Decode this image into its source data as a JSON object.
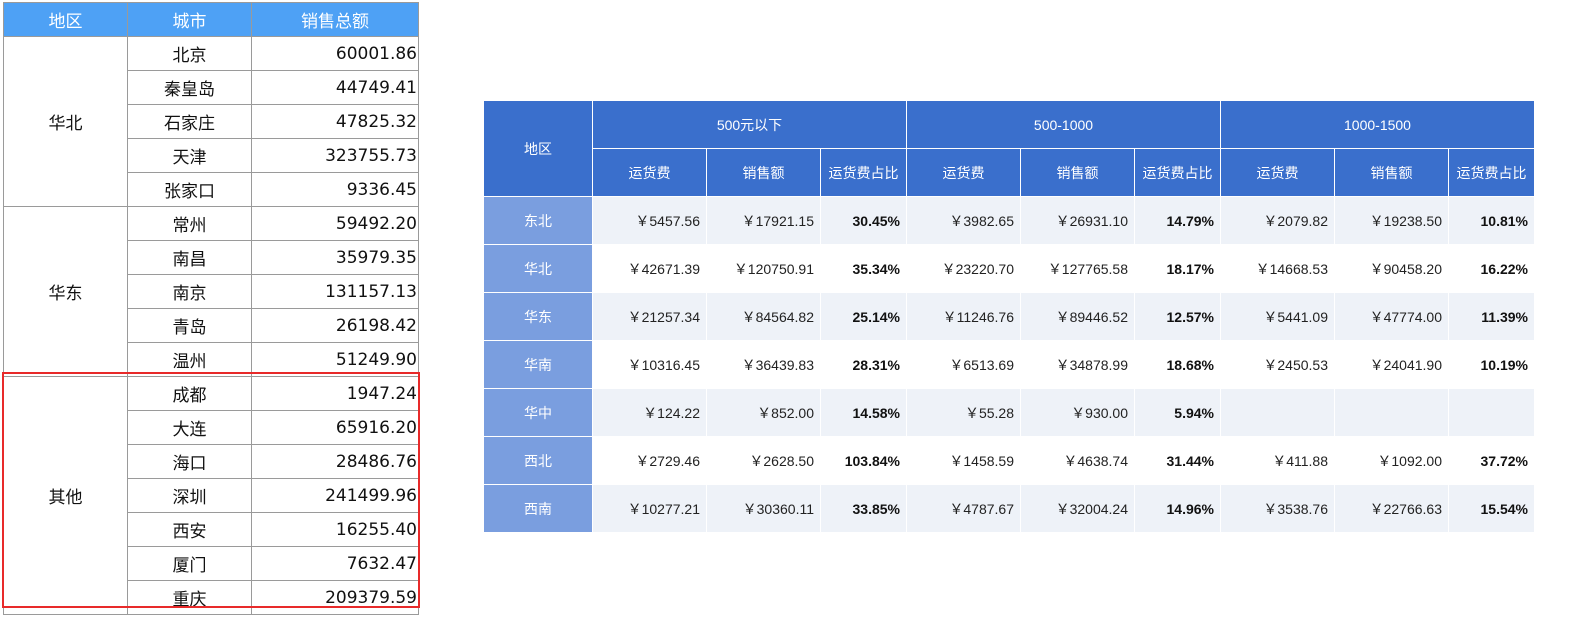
{
  "left_table": {
    "headers": [
      "地区",
      "城市",
      "销售总额"
    ],
    "groups": [
      {
        "region": "华北",
        "rows": [
          {
            "city": "北京",
            "amount": "60001.86"
          },
          {
            "city": "秦皇岛",
            "amount": "44749.41"
          },
          {
            "city": "石家庄",
            "amount": "47825.32"
          },
          {
            "city": "天津",
            "amount": "323755.73"
          },
          {
            "city": "张家口",
            "amount": "9336.45"
          }
        ]
      },
      {
        "region": "华东",
        "rows": [
          {
            "city": "常州",
            "amount": "59492.20"
          },
          {
            "city": "南昌",
            "amount": "35979.35"
          },
          {
            "city": "南京",
            "amount": "131157.13"
          },
          {
            "city": "青岛",
            "amount": "26198.42"
          },
          {
            "city": "温州",
            "amount": "51249.90"
          }
        ]
      },
      {
        "region": "其他",
        "rows": [
          {
            "city": "成都",
            "amount": "1947.24"
          },
          {
            "city": "大连",
            "amount": "65916.20"
          },
          {
            "city": "海口",
            "amount": "28486.76"
          },
          {
            "city": "深圳",
            "amount": "241499.96"
          },
          {
            "city": "西安",
            "amount": "16255.40"
          },
          {
            "city": "厦门",
            "amount": "7632.47"
          },
          {
            "city": "重庆",
            "amount": "209379.59"
          }
        ]
      }
    ]
  },
  "right_table": {
    "corner_label": "地区",
    "groups": [
      "500元以下",
      "500-1000",
      "1000-1500"
    ],
    "sub_headers": [
      "运货费",
      "销售额",
      "运货费占比"
    ],
    "rows": [
      {
        "region": "东北",
        "cells": [
          "￥5457.56",
          "￥17921.15",
          "30.45%",
          "￥3982.65",
          "￥26931.10",
          "14.79%",
          "￥2079.82",
          "￥19238.50",
          "10.81%"
        ]
      },
      {
        "region": "华北",
        "cells": [
          "￥42671.39",
          "￥120750.91",
          "35.34%",
          "￥23220.70",
          "￥127765.58",
          "18.17%",
          "￥14668.53",
          "￥90458.20",
          "16.22%"
        ]
      },
      {
        "region": "华东",
        "cells": [
          "￥21257.34",
          "￥84564.82",
          "25.14%",
          "￥11246.76",
          "￥89446.52",
          "12.57%",
          "￥5441.09",
          "￥47774.00",
          "11.39%"
        ]
      },
      {
        "region": "华南",
        "cells": [
          "￥10316.45",
          "￥36439.83",
          "28.31%",
          "￥6513.69",
          "￥34878.99",
          "18.68%",
          "￥2450.53",
          "￥24041.90",
          "10.19%"
        ]
      },
      {
        "region": "华中",
        "cells": [
          "￥124.22",
          "￥852.00",
          "14.58%",
          "￥55.28",
          "￥930.00",
          "5.94%",
          "",
          "",
          ""
        ]
      },
      {
        "region": "西北",
        "cells": [
          "￥2729.46",
          "￥2628.50",
          "103.84%",
          "￥1458.59",
          "￥4638.74",
          "31.44%",
          "￥411.88",
          "￥1092.00",
          "37.72%"
        ]
      },
      {
        "region": "西南",
        "cells": [
          "￥10277.21",
          "￥30360.11",
          "33.85%",
          "￥4787.67",
          "￥32004.24",
          "14.96%",
          "￥3538.76",
          "￥22766.63",
          "15.54%"
        ]
      }
    ]
  },
  "colors": {
    "left_header_bg": "#4ea1f5",
    "right_header_bg": "#3a6fcc",
    "right_row_header_bg": "#7a9edf",
    "highlight": "#e82a2a"
  }
}
